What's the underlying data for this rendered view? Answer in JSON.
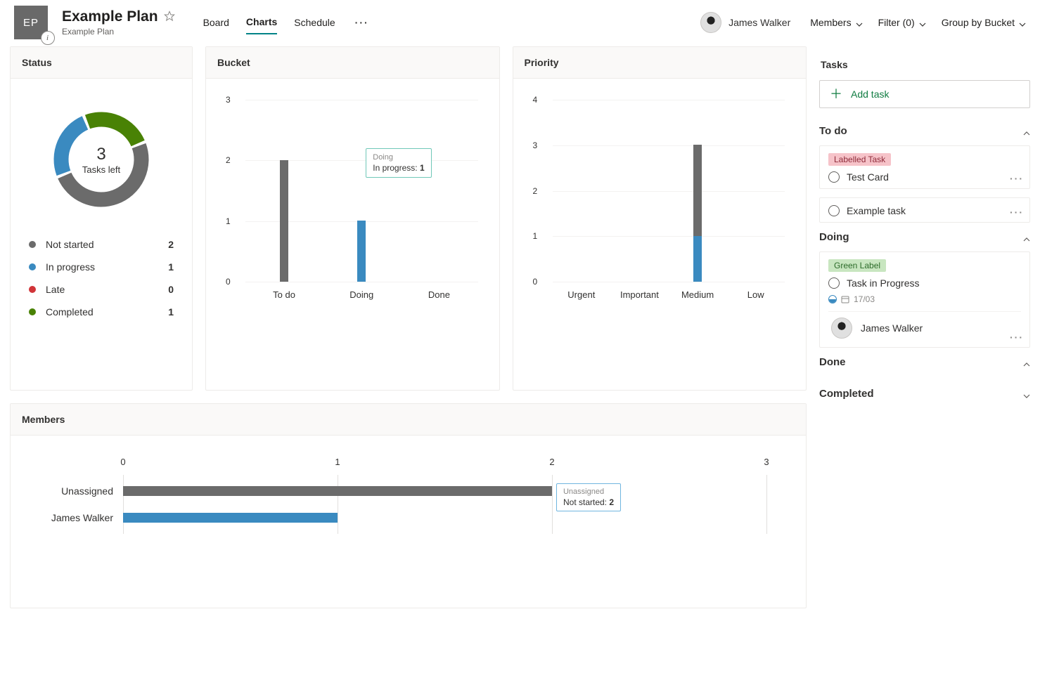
{
  "header": {
    "plan_initials": "EP",
    "plan_name": "Example Plan",
    "plan_sub": "Example Plan",
    "tabs": {
      "board": "Board",
      "charts": "Charts",
      "schedule": "Schedule"
    },
    "user_name": "James Walker",
    "members_label": "Members",
    "filter_label": "Filter (0)",
    "group_label": "Group by Bucket"
  },
  "colors": {
    "not_started": "#6b6b6b",
    "in_progress": "#3a8ac0",
    "late": "#d13438",
    "completed": "#498205",
    "grid": "#f3f2f1",
    "axis": "#a19f9d"
  },
  "status": {
    "title": "Status",
    "center_num": "3",
    "center_label": "Tasks left",
    "legend": [
      {
        "label": "Not started",
        "value": "2",
        "color": "#6b6b6b"
      },
      {
        "label": "In progress",
        "value": "1",
        "color": "#3a8ac0"
      },
      {
        "label": "Late",
        "value": "0",
        "color": "#d13438"
      },
      {
        "label": "Completed",
        "value": "1",
        "color": "#498205"
      }
    ],
    "donut": {
      "total": 4,
      "gap_deg": 4,
      "stroke": 14,
      "arcs": [
        {
          "color": "#6b6b6b",
          "value": 2
        },
        {
          "color": "#3a8ac0",
          "value": 1
        },
        {
          "color": "#498205",
          "value": 1
        }
      ]
    }
  },
  "bucket": {
    "title": "Bucket",
    "ylim": 3,
    "yticks": [
      0,
      1,
      2,
      3
    ],
    "categories": [
      "To do",
      "Doing",
      "Done"
    ],
    "stacks": [
      [
        {
          "color": "#6b6b6b",
          "value": 2
        }
      ],
      [
        {
          "color": "#3a8ac0",
          "value": 1
        }
      ],
      []
    ],
    "tooltip": {
      "cat_index": 1,
      "title": "Doing",
      "line": "In progress:",
      "val": "1"
    }
  },
  "priority": {
    "title": "Priority",
    "ylim": 4,
    "yticks": [
      0,
      1,
      2,
      3,
      4
    ],
    "categories": [
      "Urgent",
      "Important",
      "Medium",
      "Low"
    ],
    "stacks": [
      [],
      [],
      [
        {
          "color": "#3a8ac0",
          "value": 1
        },
        {
          "color": "#6b6b6b",
          "value": 2
        }
      ],
      []
    ]
  },
  "members": {
    "title": "Members",
    "xlim": 3,
    "xticks": [
      0,
      1,
      2,
      3
    ],
    "rows": [
      {
        "label": "Unassigned",
        "segments": [
          {
            "color": "#6b6b6b",
            "value": 2
          }
        ]
      },
      {
        "label": "James Walker",
        "segments": [
          {
            "color": "#3a8ac0",
            "value": 1
          }
        ]
      }
    ],
    "tooltip": {
      "row_index": 0,
      "at_value": 2,
      "title": "Unassigned",
      "line": "Not started:",
      "val": "2"
    }
  },
  "sidebar": {
    "title": "Tasks",
    "add_label": "Add task",
    "sections": {
      "todo": {
        "title": "To do",
        "tasks": [
          {
            "label": {
              "text": "Labelled Task",
              "bg": "#f6c3c9",
              "fg": "#8f2b3a"
            },
            "title": "Test Card"
          },
          {
            "title": "Example task"
          }
        ]
      },
      "doing": {
        "title": "Doing",
        "tasks": [
          {
            "label": {
              "text": "Green Label",
              "bg": "#c8e6c0",
              "fg": "#2c6b29"
            },
            "title": "Task in Progress",
            "date": "17/03",
            "assignee": "James Walker"
          }
        ]
      },
      "done": {
        "title": "Done"
      },
      "completed": {
        "title": "Completed"
      }
    }
  }
}
